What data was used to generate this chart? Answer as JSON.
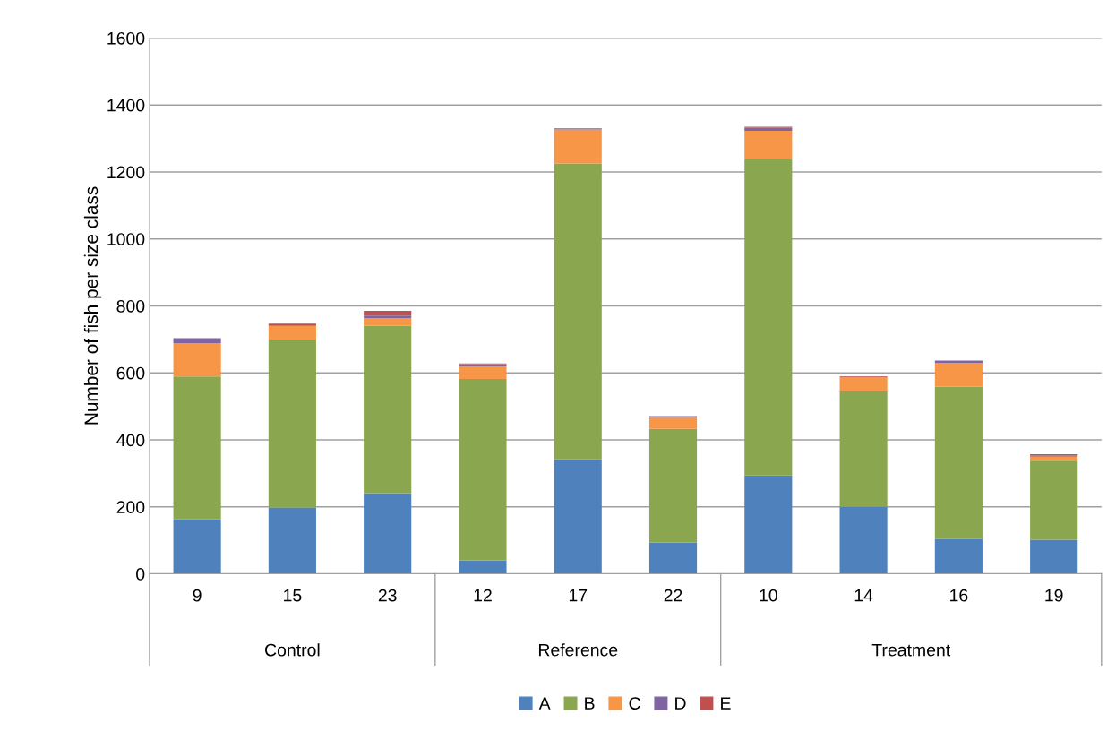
{
  "chart_data": {
    "type": "bar",
    "stacked": true,
    "ylabel": "Number of fish per size class",
    "categories": [
      "9",
      "15",
      "23",
      "12",
      "17",
      "22",
      "10",
      "14",
      "16",
      "19"
    ],
    "series": [
      {
        "name": "A",
        "color": "#4f81bd",
        "values": [
          163,
          198,
          241,
          40,
          342,
          94,
          294,
          201,
          104,
          102
        ]
      },
      {
        "name": "B",
        "color": "#8aa64e",
        "values": [
          426,
          502,
          500,
          542,
          883,
          339,
          944,
          344,
          455,
          236
        ]
      },
      {
        "name": "C",
        "color": "#f79646",
        "values": [
          100,
          40,
          23,
          38,
          102,
          33,
          85,
          42,
          71,
          12
        ]
      },
      {
        "name": "D",
        "color": "#8064a2",
        "values": [
          15,
          2,
          7,
          6,
          1,
          5,
          9,
          1,
          7,
          3
        ]
      },
      {
        "name": "E",
        "color": "#c0504d",
        "values": [
          null,
          5,
          14,
          2,
          2,
          null,
          3,
          2,
          null,
          4
        ]
      }
    ],
    "ylim": [
      0,
      1600
    ],
    "yticks": [
      0,
      200,
      400,
      600,
      800,
      1000,
      1200,
      1400,
      1600
    ],
    "grid": "y",
    "legend": "bottom",
    "annotations": [
      "Control",
      "Reference",
      "Treatment"
    ]
  }
}
